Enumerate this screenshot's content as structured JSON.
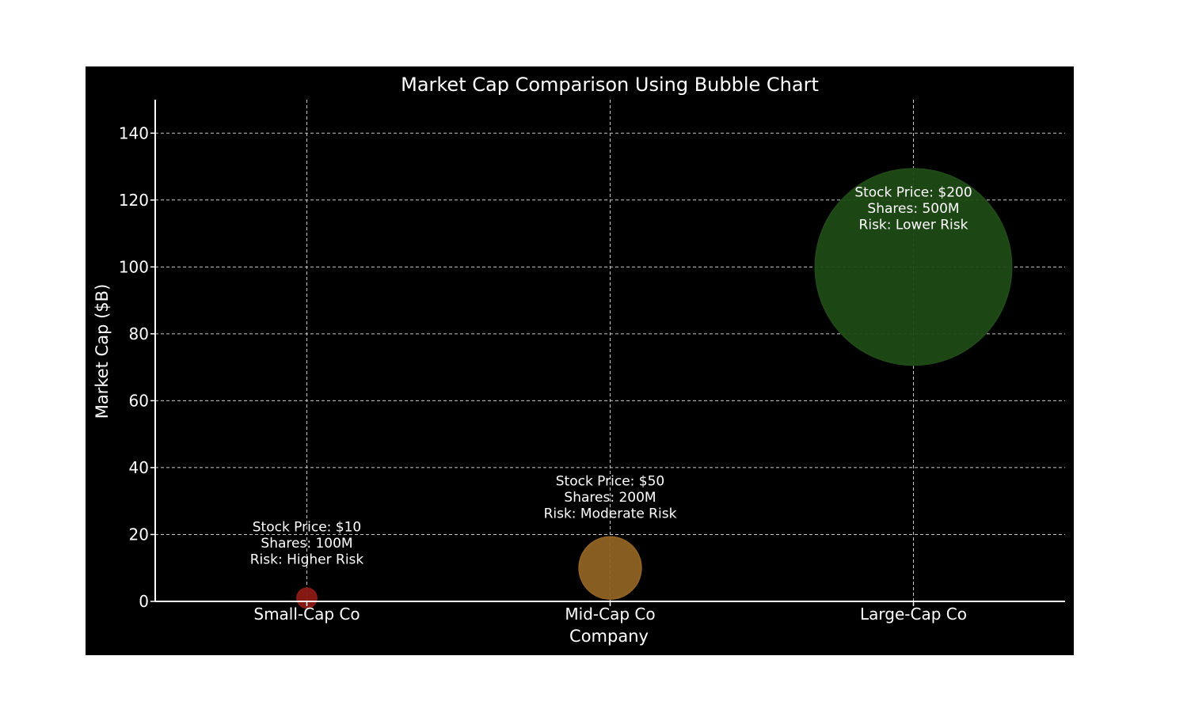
{
  "chart_data": {
    "type": "scatter",
    "title": "Market Cap Comparison Using Bubble Chart",
    "xlabel": "Company",
    "ylabel": "Market Cap ($B)",
    "categories": [
      "Small-Cap Co",
      "Mid-Cap Co",
      "Large-Cap Co"
    ],
    "ylim": [
      0,
      150
    ],
    "yticks": [
      0,
      20,
      40,
      60,
      80,
      100,
      120,
      140
    ],
    "grid": true,
    "points": [
      {
        "company": "Small-Cap Co",
        "market_cap": 1,
        "stock_price": 10,
        "shares_m": 100,
        "risk": "Higher Risk",
        "color": "#8b1a14",
        "annotation": [
          "Stock Price: $10",
          "Shares: 100M",
          "Risk: Higher Risk"
        ]
      },
      {
        "company": "Mid-Cap Co",
        "market_cap": 10,
        "stock_price": 50,
        "shares_m": 200,
        "risk": "Moderate Risk",
        "color": "#8f6224",
        "annotation": [
          "Stock Price: $50",
          "Shares: 200M",
          "Risk: Moderate Risk"
        ]
      },
      {
        "company": "Large-Cap Co",
        "market_cap": 100,
        "stock_price": 200,
        "shares_m": 500,
        "risk": "Lower Risk",
        "color": "#1f4a16",
        "annotation": [
          "Stock Price: $200",
          "Shares: 500M",
          "Risk: Lower Risk"
        ]
      }
    ]
  }
}
